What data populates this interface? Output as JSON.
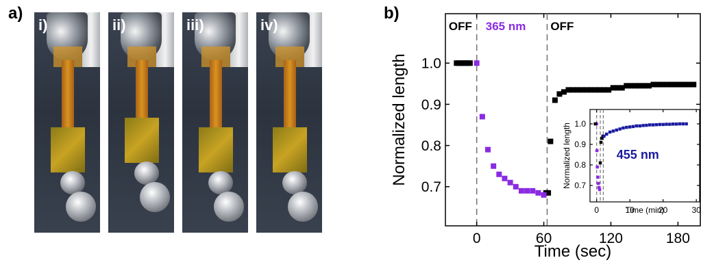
{
  "panel_a": {
    "label": "a)",
    "photos": [
      {
        "label": "i)"
      },
      {
        "label": "ii)"
      },
      {
        "label": "iii)"
      },
      {
        "label": "iv)"
      }
    ]
  },
  "panel_b": {
    "label": "b)"
  },
  "colors": {
    "off": "#000000",
    "uv": "#8a2be2",
    "blue": "#1a1aa0",
    "dash": "#777777"
  },
  "chart_data": [
    {
      "type": "scatter",
      "title": "",
      "xlabel": "Time (sec)",
      "ylabel": "Normalized length",
      "xlim": [
        -28,
        200
      ],
      "ylim": [
        0.605,
        1.12
      ],
      "xticks": [
        0,
        60,
        120,
        180
      ],
      "yticks": [
        0.7,
        0.8,
        0.9,
        1.0
      ],
      "ytick_labels": [
        "0.7",
        "0.8",
        "0.9",
        "1.0"
      ],
      "vlines": [
        0,
        63
      ],
      "annotations": [
        {
          "text": "OFF",
          "x": -25,
          "y": 1.08,
          "color": "#000000"
        },
        {
          "text": "365 nm",
          "x": 8,
          "y": 1.08,
          "color": "#8a2be2"
        },
        {
          "text": "OFF",
          "x": 66,
          "y": 1.08,
          "color": "#000000"
        }
      ],
      "series": [
        {
          "color": "#000000",
          "points": [
            [
              -18,
              1.0
            ],
            [
              -16,
              1.0
            ],
            [
              -14,
              1.0
            ],
            [
              -12,
              1.0
            ],
            [
              -10,
              1.0
            ],
            [
              -8,
              1.0
            ],
            [
              -6,
              1.0
            ],
            [
              62,
              0.685
            ],
            [
              64,
              0.685
            ],
            [
              66,
              0.81
            ],
            [
              70,
              0.91
            ],
            [
              74,
              0.925
            ],
            [
              78,
              0.93
            ],
            [
              82,
              0.935
            ],
            [
              86,
              0.935
            ],
            [
              90,
              0.935
            ],
            [
              94,
              0.935
            ],
            [
              98,
              0.935
            ],
            [
              102,
              0.935
            ],
            [
              106,
              0.935
            ],
            [
              110,
              0.935
            ],
            [
              114,
              0.935
            ],
            [
              118,
              0.935
            ],
            [
              122,
              0.94
            ],
            [
              126,
              0.94
            ],
            [
              130,
              0.94
            ],
            [
              134,
              0.945
            ],
            [
              138,
              0.945
            ],
            [
              142,
              0.945
            ],
            [
              146,
              0.945
            ],
            [
              150,
              0.945
            ],
            [
              154,
              0.945
            ],
            [
              158,
              0.948
            ],
            [
              162,
              0.948
            ],
            [
              166,
              0.948
            ],
            [
              170,
              0.948
            ],
            [
              174,
              0.948
            ],
            [
              178,
              0.948
            ],
            [
              182,
              0.948
            ],
            [
              186,
              0.948
            ],
            [
              190,
              0.948
            ],
            [
              194,
              0.948
            ]
          ]
        },
        {
          "color": "#8a2be2",
          "points": [
            [
              0,
              1.0
            ],
            [
              5,
              0.87
            ],
            [
              10,
              0.79
            ],
            [
              15,
              0.75
            ],
            [
              20,
              0.73
            ],
            [
              25,
              0.72
            ],
            [
              30,
              0.71
            ],
            [
              35,
              0.7
            ],
            [
              40,
              0.69
            ],
            [
              45,
              0.69
            ],
            [
              50,
              0.69
            ],
            [
              55,
              0.685
            ],
            [
              60,
              0.68
            ]
          ]
        }
      ]
    },
    {
      "type": "scatter",
      "title": "",
      "xlabel": "Time (min)",
      "ylabel": "Normalized length",
      "xlim": [
        -2,
        31
      ],
      "ylim": [
        0.62,
        1.07
      ],
      "xticks": [
        0,
        10,
        20,
        30
      ],
      "yticks": [
        0.7,
        0.8,
        0.9,
        1.0
      ],
      "ytick_labels": [
        "0.7",
        "0.8",
        "0.9",
        "1.0"
      ],
      "vlines": [
        0,
        1.1,
        2.0
      ],
      "annotations": [
        {
          "text": "455 nm",
          "x": 6,
          "y": 0.83,
          "color": "#1a1aa0"
        }
      ],
      "series": [
        {
          "color": "#8a2be2",
          "points": [
            [
              0,
              1.0
            ],
            [
              0.1,
              0.87
            ],
            [
              0.2,
              0.79
            ],
            [
              0.35,
              0.74
            ],
            [
              0.5,
              0.71
            ],
            [
              0.7,
              0.69
            ],
            [
              0.9,
              0.68
            ]
          ]
        },
        {
          "color": "#000000",
          "points": [
            [
              -0.4,
              1.0
            ],
            [
              1.1,
              0.81
            ],
            [
              1.3,
              0.91
            ],
            [
              1.6,
              0.93
            ],
            [
              1.9,
              0.94
            ]
          ]
        },
        {
          "color": "#1a1aa0",
          "points": [
            [
              2.2,
              0.94
            ],
            [
              3,
              0.95
            ],
            [
              4,
              0.96
            ],
            [
              5,
              0.965
            ],
            [
              6,
              0.97
            ],
            [
              7,
              0.975
            ],
            [
              8,
              0.98
            ],
            [
              9,
              0.983
            ],
            [
              10,
              0.985
            ],
            [
              11,
              0.987
            ],
            [
              12,
              0.99
            ],
            [
              13,
              0.99
            ],
            [
              14,
              0.992
            ],
            [
              15,
              0.993
            ],
            [
              16,
              0.995
            ],
            [
              17,
              0.995
            ],
            [
              18,
              0.996
            ],
            [
              19,
              0.997
            ],
            [
              20,
              0.997
            ],
            [
              21,
              0.998
            ],
            [
              22,
              0.998
            ],
            [
              23,
              0.999
            ],
            [
              24,
              0.999
            ],
            [
              25,
              1.0
            ],
            [
              26,
              1.0
            ],
            [
              27,
              1.0
            ]
          ]
        }
      ]
    }
  ]
}
